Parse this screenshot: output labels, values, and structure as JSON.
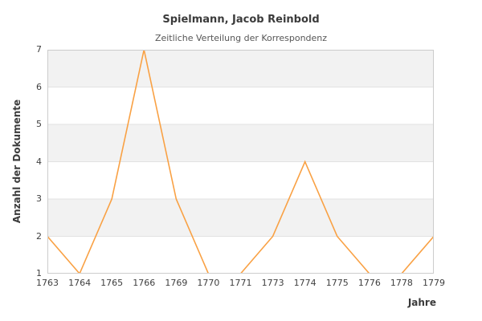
{
  "header": {
    "title": "Spielmann, Jacob Reinbold",
    "subtitle": "Zeitliche Verteilung der Korrespondenz"
  },
  "chart_data": {
    "type": "line",
    "title": "Spielmann, Jacob Reinbold",
    "subtitle": "Zeitliche Verteilung der Korrespondenz",
    "categories": [
      "1763",
      "1764",
      "1765",
      "1766",
      "1769",
      "1770",
      "1771",
      "1773",
      "1774",
      "1775",
      "1776",
      "1778",
      "1779"
    ],
    "values": [
      2,
      1,
      3,
      7,
      3,
      1,
      1,
      2,
      4,
      2,
      1,
      1,
      2
    ],
    "xlabel": "Jahre",
    "ylabel": "Anzahl der Dokumente",
    "ylim": [
      1,
      7
    ],
    "yticks": [
      1,
      2,
      3,
      4,
      5,
      6,
      7
    ],
    "legend_position": "none",
    "grid": "horizontal-bands-alternating",
    "colors": {
      "line": "#f9a144",
      "band": "#f2f2f2",
      "gridline": "#e2e2e2",
      "plot_border": "#cccccc",
      "title_text": "#3b3b3b",
      "subtitle_text": "#565656",
      "tick_text": "#3f3f3f"
    }
  }
}
